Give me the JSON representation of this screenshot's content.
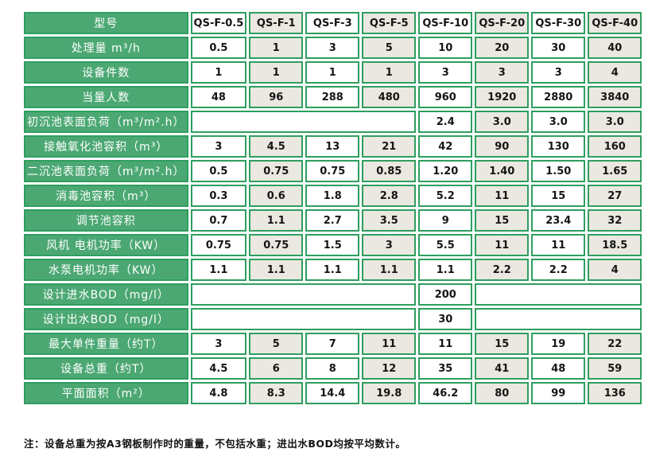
{
  "colors": {
    "green_fill": "#4ca873",
    "green_border": "#2e9e5f",
    "gray_cell": "#eae8e0",
    "white_cell": "#ffffff",
    "value_text": "#151515",
    "label_text": "#ffffff"
  },
  "table": {
    "header": {
      "label": "型号",
      "models": [
        "QS-F-0.5",
        "QS-F-1",
        "QS-F-3",
        "QS-F-5",
        "QS-F-10",
        "QS-F-20",
        "QS-F-30",
        "QS-F-40"
      ]
    },
    "rows": [
      {
        "label": "处理量 m³/h",
        "cells": [
          {
            "text": "0.5",
            "bg": "w"
          },
          {
            "text": "1",
            "bg": "g"
          },
          {
            "text": "3",
            "bg": "w"
          },
          {
            "text": "5",
            "bg": "g"
          },
          {
            "text": "10",
            "bg": "w"
          },
          {
            "text": "20",
            "bg": "g"
          },
          {
            "text": "30",
            "bg": "w"
          },
          {
            "text": "40",
            "bg": "g"
          }
        ]
      },
      {
        "label": "设备件数",
        "cells": [
          {
            "text": "1",
            "bg": "w"
          },
          {
            "text": "1",
            "bg": "g"
          },
          {
            "text": "1",
            "bg": "w"
          },
          {
            "text": "1",
            "bg": "g"
          },
          {
            "text": "3",
            "bg": "w"
          },
          {
            "text": "3",
            "bg": "g"
          },
          {
            "text": "3",
            "bg": "w"
          },
          {
            "text": "4",
            "bg": "g"
          }
        ]
      },
      {
        "label": "当量人数",
        "cells": [
          {
            "text": "48",
            "bg": "w"
          },
          {
            "text": "96",
            "bg": "g"
          },
          {
            "text": "288",
            "bg": "w"
          },
          {
            "text": "480",
            "bg": "g"
          },
          {
            "text": "960",
            "bg": "w"
          },
          {
            "text": "1920",
            "bg": "g"
          },
          {
            "text": "2880",
            "bg": "w"
          },
          {
            "text": "3840",
            "bg": "g"
          }
        ]
      },
      {
        "label": "初沉池表面负荷（m³/m².h）",
        "cells": [
          {
            "text": "",
            "bg": "w",
            "colspan": 4
          },
          {
            "text": "2.4",
            "bg": "w"
          },
          {
            "text": "3.0",
            "bg": "g"
          },
          {
            "text": "3.0",
            "bg": "w"
          },
          {
            "text": "3.0",
            "bg": "g"
          }
        ]
      },
      {
        "label": "接触氧化池容积（m³）",
        "cells": [
          {
            "text": "3",
            "bg": "w"
          },
          {
            "text": "4.5",
            "bg": "g"
          },
          {
            "text": "13",
            "bg": "w"
          },
          {
            "text": "21",
            "bg": "g"
          },
          {
            "text": "42",
            "bg": "w"
          },
          {
            "text": "90",
            "bg": "g"
          },
          {
            "text": "130",
            "bg": "w"
          },
          {
            "text": "160",
            "bg": "g"
          }
        ]
      },
      {
        "label": "二沉池表面负荷（m³/m².h）",
        "cells": [
          {
            "text": "0.5",
            "bg": "w"
          },
          {
            "text": "0.75",
            "bg": "g"
          },
          {
            "text": "0.75",
            "bg": "w"
          },
          {
            "text": "0.85",
            "bg": "g"
          },
          {
            "text": "1.20",
            "bg": "w"
          },
          {
            "text": "1.40",
            "bg": "g"
          },
          {
            "text": "1.50",
            "bg": "w"
          },
          {
            "text": "1.65",
            "bg": "g"
          }
        ]
      },
      {
        "label": "消毒池容积（m³）",
        "cells": [
          {
            "text": "0.3",
            "bg": "w"
          },
          {
            "text": "0.6",
            "bg": "g"
          },
          {
            "text": "1.8",
            "bg": "w"
          },
          {
            "text": "2.8",
            "bg": "g"
          },
          {
            "text": "5.2",
            "bg": "w"
          },
          {
            "text": "11",
            "bg": "g"
          },
          {
            "text": "15",
            "bg": "w"
          },
          {
            "text": "27",
            "bg": "g"
          }
        ]
      },
      {
        "label": "调节池容积",
        "cells": [
          {
            "text": "0.7",
            "bg": "w"
          },
          {
            "text": "1.1",
            "bg": "g"
          },
          {
            "text": "2.7",
            "bg": "w"
          },
          {
            "text": "3.5",
            "bg": "g"
          },
          {
            "text": "9",
            "bg": "w"
          },
          {
            "text": "15",
            "bg": "g"
          },
          {
            "text": "23.4",
            "bg": "w"
          },
          {
            "text": "32",
            "bg": "g"
          }
        ]
      },
      {
        "label": "风机 电机功率（KW）",
        "cells": [
          {
            "text": "0.75",
            "bg": "w"
          },
          {
            "text": "0.75",
            "bg": "g"
          },
          {
            "text": "1.5",
            "bg": "w"
          },
          {
            "text": "3",
            "bg": "g"
          },
          {
            "text": "5.5",
            "bg": "w"
          },
          {
            "text": "11",
            "bg": "g"
          },
          {
            "text": "11",
            "bg": "w"
          },
          {
            "text": "18.5",
            "bg": "g"
          }
        ]
      },
      {
        "label": "水泵电机功率（KW）",
        "cells": [
          {
            "text": "1.1",
            "bg": "w"
          },
          {
            "text": "1.1",
            "bg": "g"
          },
          {
            "text": "1.1",
            "bg": "w"
          },
          {
            "text": "1.1",
            "bg": "g"
          },
          {
            "text": "1.1",
            "bg": "w"
          },
          {
            "text": "2.2",
            "bg": "g"
          },
          {
            "text": "2.2",
            "bg": "w"
          },
          {
            "text": "4",
            "bg": "g"
          }
        ]
      },
      {
        "label": "设计进水BOD（mg/l）",
        "cells": [
          {
            "text": "",
            "bg": "w",
            "colspan": 4
          },
          {
            "text": "200",
            "bg": "w"
          },
          {
            "text": "",
            "bg": "w",
            "colspan": 3
          }
        ]
      },
      {
        "label": "设计出水BOD（mg/l）",
        "cells": [
          {
            "text": "",
            "bg": "w",
            "colspan": 4
          },
          {
            "text": "30",
            "bg": "w"
          },
          {
            "text": "",
            "bg": "w",
            "colspan": 3
          }
        ]
      },
      {
        "label": "最大单件重量（约T）",
        "cells": [
          {
            "text": "3",
            "bg": "w"
          },
          {
            "text": "5",
            "bg": "g"
          },
          {
            "text": "7",
            "bg": "w"
          },
          {
            "text": "11",
            "bg": "g"
          },
          {
            "text": "11",
            "bg": "w"
          },
          {
            "text": "15",
            "bg": "g"
          },
          {
            "text": "19",
            "bg": "w"
          },
          {
            "text": "22",
            "bg": "g"
          }
        ]
      },
      {
        "label": "设备总重（约T）",
        "cells": [
          {
            "text": "4.5",
            "bg": "w"
          },
          {
            "text": "6",
            "bg": "g"
          },
          {
            "text": "8",
            "bg": "w"
          },
          {
            "text": "12",
            "bg": "g"
          },
          {
            "text": "35",
            "bg": "w"
          },
          {
            "text": "41",
            "bg": "g"
          },
          {
            "text": "48",
            "bg": "w"
          },
          {
            "text": "59",
            "bg": "g"
          }
        ]
      },
      {
        "label": "平面面积（m²）",
        "cells": [
          {
            "text": "4.8",
            "bg": "w"
          },
          {
            "text": "8.3",
            "bg": "g"
          },
          {
            "text": "14.4",
            "bg": "w"
          },
          {
            "text": "19.8",
            "bg": "g"
          },
          {
            "text": "46.2",
            "bg": "w"
          },
          {
            "text": "80",
            "bg": "g"
          },
          {
            "text": "99",
            "bg": "w"
          },
          {
            "text": "136",
            "bg": "g"
          }
        ]
      }
    ]
  },
  "note": "注：设备总重为按A3钢板制作时的重量，不包括水重；进出水BOD均按平均数计。"
}
